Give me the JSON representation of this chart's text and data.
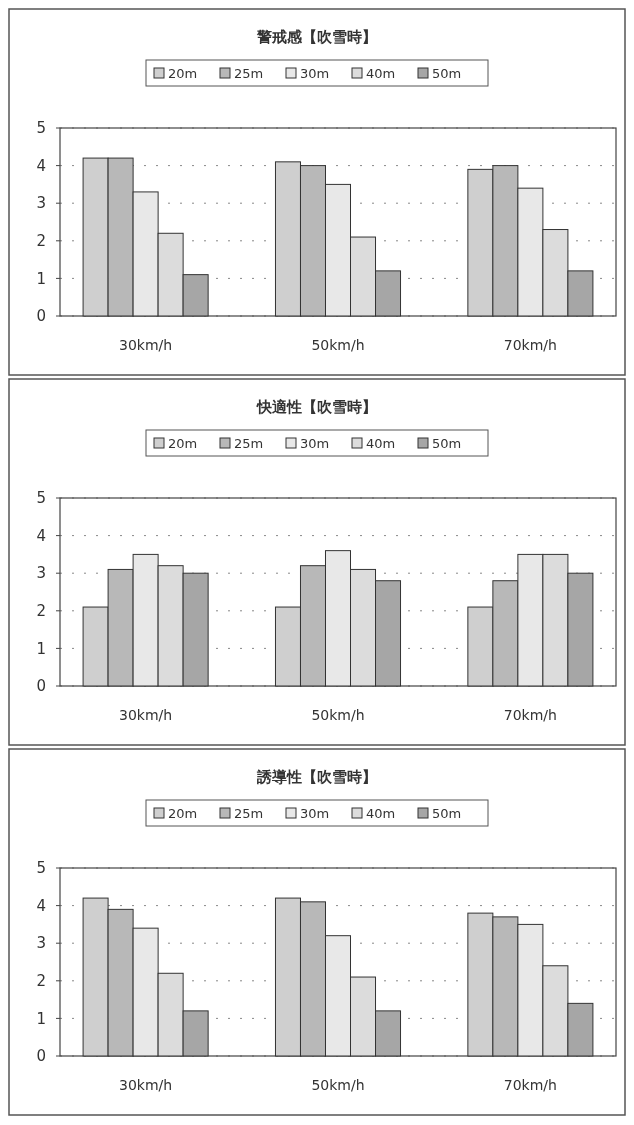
{
  "chart_data": [
    {
      "type": "bar",
      "title": "警戒感【吹雪時】",
      "categories": [
        "30km/h",
        "50km/h",
        "70km/h"
      ],
      "series": [
        {
          "name": "20m",
          "color": "#cfcfcf",
          "values": [
            4.2,
            4.1,
            3.9
          ]
        },
        {
          "name": "25m",
          "color": "#b8b8b8",
          "values": [
            4.2,
            4.0,
            4.0
          ]
        },
        {
          "name": "30m",
          "color": "#e8e8e8",
          "values": [
            3.3,
            3.5,
            3.4
          ]
        },
        {
          "name": "40m",
          "color": "#dcdcdc",
          "values": [
            2.2,
            2.1,
            2.3
          ]
        },
        {
          "name": "50m",
          "color": "#a6a6a6",
          "values": [
            1.1,
            1.2,
            1.2
          ]
        }
      ],
      "ylim": [
        0,
        5
      ],
      "yticks": [
        0,
        1,
        2,
        3,
        4,
        5
      ],
      "grid": "y",
      "legend": "top"
    },
    {
      "type": "bar",
      "title": "快適性【吹雪時】",
      "categories": [
        "30km/h",
        "50km/h",
        "70km/h"
      ],
      "series": [
        {
          "name": "20m",
          "color": "#cfcfcf",
          "values": [
            2.1,
            2.1,
            2.1
          ]
        },
        {
          "name": "25m",
          "color": "#b8b8b8",
          "values": [
            3.1,
            3.2,
            2.8
          ]
        },
        {
          "name": "30m",
          "color": "#e8e8e8",
          "values": [
            3.5,
            3.6,
            3.5
          ]
        },
        {
          "name": "40m",
          "color": "#dcdcdc",
          "values": [
            3.2,
            3.1,
            3.5
          ]
        },
        {
          "name": "50m",
          "color": "#a6a6a6",
          "values": [
            3.0,
            2.8,
            3.0
          ]
        }
      ],
      "ylim": [
        0,
        5
      ],
      "yticks": [
        0,
        1,
        2,
        3,
        4,
        5
      ],
      "grid": "y",
      "legend": "top"
    },
    {
      "type": "bar",
      "title": "誘導性【吹雪時】",
      "categories": [
        "30km/h",
        "50km/h",
        "70km/h"
      ],
      "series": [
        {
          "name": "20m",
          "color": "#cfcfcf",
          "values": [
            4.2,
            4.2,
            3.8
          ]
        },
        {
          "name": "25m",
          "color": "#b8b8b8",
          "values": [
            3.9,
            4.1,
            3.7
          ]
        },
        {
          "name": "30m",
          "color": "#e8e8e8",
          "values": [
            3.4,
            3.2,
            3.5
          ]
        },
        {
          "name": "40m",
          "color": "#dcdcdc",
          "values": [
            2.2,
            2.1,
            2.4
          ]
        },
        {
          "name": "50m",
          "color": "#a6a6a6",
          "values": [
            1.2,
            1.2,
            1.4
          ]
        }
      ],
      "ylim": [
        0,
        5
      ],
      "yticks": [
        0,
        1,
        2,
        3,
        4,
        5
      ],
      "grid": "y",
      "legend": "top"
    }
  ]
}
